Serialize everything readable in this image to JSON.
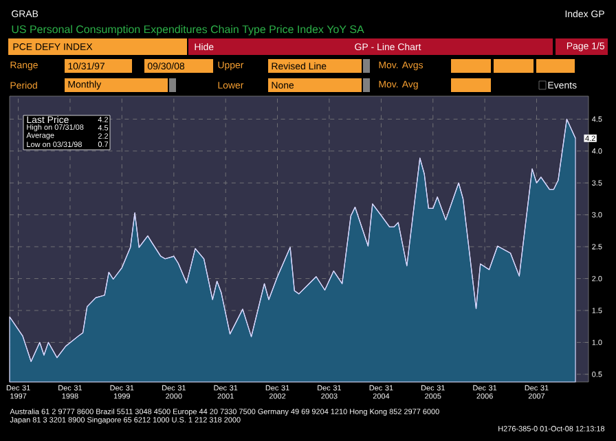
{
  "chart_data": {
    "type": "area",
    "title": "US Personal Consumption Expenditures Chain Type Price Index YoY SA",
    "x": [
      "1997-10-31",
      "1998-01-31",
      "1998-03-31",
      "1998-05-31",
      "1998-06-30",
      "1998-07-31",
      "1998-09-30",
      "1998-11-30",
      "1999-02-28",
      "1999-03-31",
      "1999-04-30",
      "1999-06-30",
      "1999-08-31",
      "1999-09-30",
      "1999-10-31",
      "1999-12-31",
      "2000-02-29",
      "2000-03-31",
      "2000-04-30",
      "2000-06-30",
      "2000-07-31",
      "2000-09-30",
      "2000-10-31",
      "2000-12-31",
      "2001-01-31",
      "2001-03-31",
      "2001-05-31",
      "2001-07-31",
      "2001-09-30",
      "2001-10-31",
      "2001-11-30",
      "2002-01-31",
      "2002-04-30",
      "2002-06-30",
      "2002-09-30",
      "2002-10-31",
      "2002-12-31",
      "2003-03-31",
      "2003-04-30",
      "2003-05-31",
      "2003-09-30",
      "2003-11-30",
      "2004-01-31",
      "2004-03-31",
      "2004-05-31",
      "2004-06-30",
      "2004-09-30",
      "2004-10-31",
      "2004-12-31",
      "2005-02-28",
      "2005-03-31",
      "2005-04-30",
      "2005-06-30",
      "2005-09-30",
      "2005-10-31",
      "2005-11-30",
      "2005-12-31",
      "2006-01-31",
      "2006-03-31",
      "2006-06-30",
      "2006-07-31",
      "2006-10-31",
      "2006-11-30",
      "2007-01-31",
      "2007-03-31",
      "2007-06-30",
      "2007-08-31",
      "2007-11-30",
      "2007-12-31",
      "2008-01-31",
      "2008-03-31",
      "2008-04-30",
      "2008-05-31",
      "2008-07-31",
      "2008-09-30"
    ],
    "values": [
      1.4,
      1.1,
      0.7,
      1.0,
      0.8,
      1.0,
      0.76,
      0.94,
      1.1,
      1.15,
      1.56,
      1.7,
      1.74,
      2.1,
      1.99,
      2.17,
      2.49,
      3.03,
      2.49,
      2.67,
      2.56,
      2.35,
      2.31,
      2.35,
      2.24,
      1.93,
      2.47,
      2.31,
      1.67,
      1.96,
      1.78,
      1.13,
      1.52,
      1.09,
      1.92,
      1.67,
      2.03,
      2.49,
      1.81,
      1.76,
      2.03,
      1.82,
      2.12,
      1.92,
      2.98,
      3.12,
      2.51,
      3.17,
      2.99,
      2.81,
      2.81,
      2.88,
      2.2,
      3.89,
      3.64,
      3.1,
      3.1,
      3.28,
      2.92,
      3.5,
      3.25,
      1.53,
      2.23,
      2.14,
      2.51,
      2.4,
      2.04,
      3.72,
      3.5,
      3.59,
      3.4,
      3.4,
      3.54,
      4.5,
      4.2
    ],
    "color": "#1f5a7a",
    "xlim": [
      "1997-10-31",
      "2008-12-31"
    ],
    "ylim": [
      0.38,
      4.86
    ],
    "xticks": [
      {
        "value": "1997-12-31",
        "label": "Dec 31 1997"
      },
      {
        "value": "1998-12-31",
        "label": "Dec 31 1998"
      },
      {
        "value": "1999-12-31",
        "label": "Dec 31 1999"
      },
      {
        "value": "2000-12-31",
        "label": "Dec 31 2000"
      },
      {
        "value": "2001-12-31",
        "label": "Dec 31 2001"
      },
      {
        "value": "2002-12-31",
        "label": "Dec 31 2002"
      },
      {
        "value": "2003-12-31",
        "label": "Dec 31 2003"
      },
      {
        "value": "2004-12-31",
        "label": "Dec 31 2004"
      },
      {
        "value": "2005-12-31",
        "label": "Dec 31 2005"
      },
      {
        "value": "2006-12-31",
        "label": "Dec 31 2006"
      },
      {
        "value": "2007-12-31",
        "label": "Dec 31 2007"
      }
    ],
    "yticks": [
      {
        "value": 0.5,
        "label": "0.5"
      },
      {
        "value": 1.0,
        "label": "1.0"
      },
      {
        "value": 1.5,
        "label": "1.5"
      },
      {
        "value": 2.0,
        "label": "2.0"
      },
      {
        "value": 2.5,
        "label": "2.5"
      },
      {
        "value": 3.0,
        "label": "3.0"
      },
      {
        "value": 3.5,
        "label": "3.5"
      },
      {
        "value": 4.0,
        "label": "4.0"
      },
      {
        "value": 4.5,
        "label": "4.5"
      }
    ],
    "grid": true,
    "annotations": [
      "GRAB",
      "Index GP",
      "PCE DEFY INDEX",
      "Hide",
      "GP - Line Chart",
      "Page 1/5",
      "Range",
      "10/31/97",
      "09/30/08",
      "Upper",
      "Revised Line",
      "Mov. Avgs",
      "Period",
      "Monthly",
      "Lower",
      "None",
      "Mov. Avg",
      "Events",
      "Last Price",
      "4.2",
      "High on 07/31/08",
      "4.5",
      "Average",
      "2.2",
      "Low on 03/31/98",
      "0.7",
      "Australia 61 2 9777 8600 Brazil 5511 3048 4500 Europe 44 20 7330 7500 Germany 49 69 9204 1210 Hong Kong 852 2977 6000",
      "Japan 81 3 3201 8900 Singapore 65 6212 1000 U.S. 1 212 318 2000",
      "H276-385-0 01-Oct-08 12:13:18",
      {
        "text": "4.2",
        "x": "2008-09-30",
        "y": 4.2
      }
    ]
  }
}
